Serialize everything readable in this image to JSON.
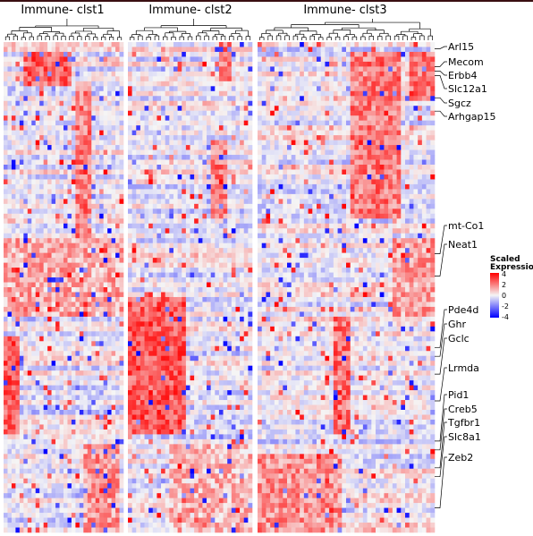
{
  "chart_data": {
    "type": "heatmap",
    "panels": [
      {
        "title": "Immune- clst1",
        "n_cols": 30
      },
      {
        "title": "Immune- clst2",
        "n_cols": 30
      },
      {
        "title": "Immune- clst3",
        "n_cols": 42
      }
    ],
    "n_rows": 100,
    "row_labels": [
      {
        "label": "Arl15",
        "row": 1
      },
      {
        "label": "Mecom",
        "row": 5
      },
      {
        "label": "Erbb4",
        "row": 6
      },
      {
        "label": "Slc12a1",
        "row": 7
      },
      {
        "label": "Sgcz",
        "row": 12
      },
      {
        "label": "Arhgap15",
        "row": 15
      },
      {
        "label": "mt-Co1",
        "row": 47
      },
      {
        "label": "Neat1",
        "row": 52
      },
      {
        "label": "Pde4d",
        "row": 68
      },
      {
        "label": "Ghr",
        "row": 70
      },
      {
        "label": "Gclc",
        "row": 74
      },
      {
        "label": "Lrmda",
        "row": 80
      },
      {
        "label": "Pid1",
        "row": 89
      },
      {
        "label": "Creb5",
        "row": 91
      },
      {
        "label": "Tgfbr1",
        "row": 95
      },
      {
        "label": "Slc8a1",
        "row": 97
      },
      {
        "label": "Zeb2",
        "row": 104
      }
    ],
    "blocks": [
      {
        "panel": 0,
        "row_start": 2,
        "row_end": 9,
        "col_start": 5,
        "col_end": 17,
        "value": 2.4
      },
      {
        "panel": 0,
        "row_start": 8,
        "row_end": 40,
        "col_start": 18,
        "col_end": 22,
        "value": 2.0
      },
      {
        "panel": 0,
        "row_start": 40,
        "row_end": 56,
        "col_start": 0,
        "col_end": 30,
        "value": 1.2
      },
      {
        "panel": 0,
        "row_start": 60,
        "row_end": 80,
        "col_start": 0,
        "col_end": 4,
        "value": 2.6
      },
      {
        "panel": 0,
        "row_start": 82,
        "row_end": 110,
        "col_start": 20,
        "col_end": 29,
        "value": 1.5
      },
      {
        "panel": 1,
        "row_start": 0,
        "row_end": 8,
        "col_start": 22,
        "col_end": 25,
        "value": 2.0
      },
      {
        "panel": 1,
        "row_start": 20,
        "row_end": 36,
        "col_start": 20,
        "col_end": 24,
        "value": 2.0
      },
      {
        "panel": 1,
        "row_start": 52,
        "row_end": 80,
        "col_start": 0,
        "col_end": 14,
        "value": 2.6
      },
      {
        "panel": 1,
        "row_start": 82,
        "row_end": 110,
        "col_start": 10,
        "col_end": 30,
        "value": 1.0
      },
      {
        "panel": 2,
        "row_start": 2,
        "row_end": 36,
        "col_start": 22,
        "col_end": 34,
        "value": 2.0
      },
      {
        "panel": 2,
        "row_start": 2,
        "row_end": 12,
        "col_start": 36,
        "col_end": 42,
        "value": 2.0
      },
      {
        "panel": 2,
        "row_start": 40,
        "row_end": 56,
        "col_start": 32,
        "col_end": 42,
        "value": 1.4
      },
      {
        "panel": 2,
        "row_start": 56,
        "row_end": 80,
        "col_start": 18,
        "col_end": 22,
        "value": 2.2
      },
      {
        "panel": 2,
        "row_start": 84,
        "row_end": 110,
        "col_start": 0,
        "col_end": 20,
        "value": 1.6
      }
    ],
    "color_scale": {
      "min": -4,
      "max": 4,
      "low": "#0000ff",
      "mid": "#f5f5f5",
      "high": "#ff0000"
    },
    "legend": {
      "title_line1": "Scaled",
      "title_line2": "Expression",
      "ticks": [
        "4",
        "2",
        "0",
        "-2",
        "-4"
      ],
      "position": "right"
    }
  }
}
